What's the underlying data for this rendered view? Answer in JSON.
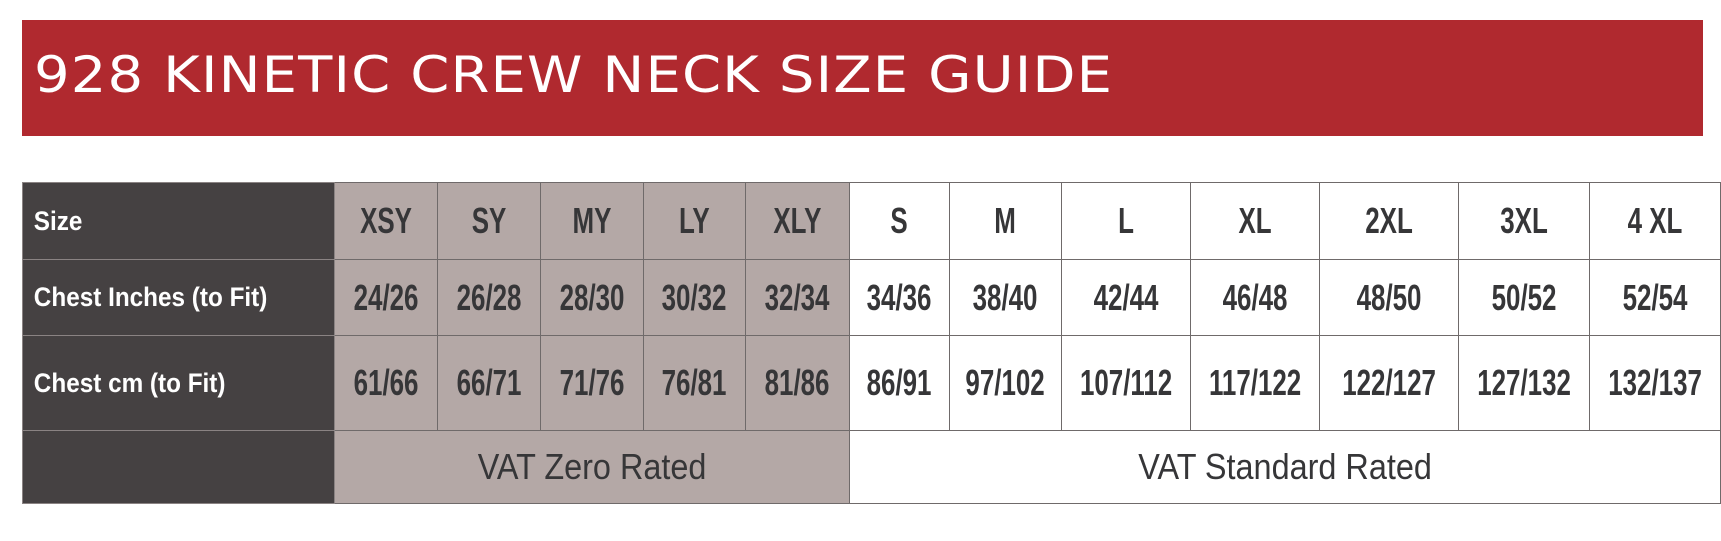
{
  "title": "928 KINETIC CREW NECK SIZE GUIDE",
  "colors": {
    "banner": "#b0292f",
    "label_bg": "#454142",
    "youth_bg": "#b4a8a6",
    "adult_bg": "#ffffff",
    "text": "#363638"
  },
  "table": {
    "row_labels": [
      "Size",
      "Chest Inches (to Fit)",
      "Chest cm (to Fit)",
      ""
    ],
    "sizes": [
      "XSY",
      "SY",
      "MY",
      "LY",
      "XLY",
      "S",
      "M",
      "L",
      "XL",
      "2XL",
      "3XL",
      "4 XL"
    ],
    "chest_inches": [
      "24/26",
      "26/28",
      "28/30",
      "30/32",
      "32/34",
      "34/36",
      "38/40",
      "42/44",
      "46/48",
      "48/50",
      "50/52",
      "52/54"
    ],
    "chest_cm": [
      "61/66",
      "66/71",
      "71/76",
      "76/81",
      "81/86",
      "86/91",
      "97/102",
      "107/112",
      "117/122",
      "122/127",
      "127/132",
      "132/137"
    ],
    "vat": {
      "youth": "VAT Zero Rated",
      "adult": "VAT Standard Rated"
    }
  }
}
